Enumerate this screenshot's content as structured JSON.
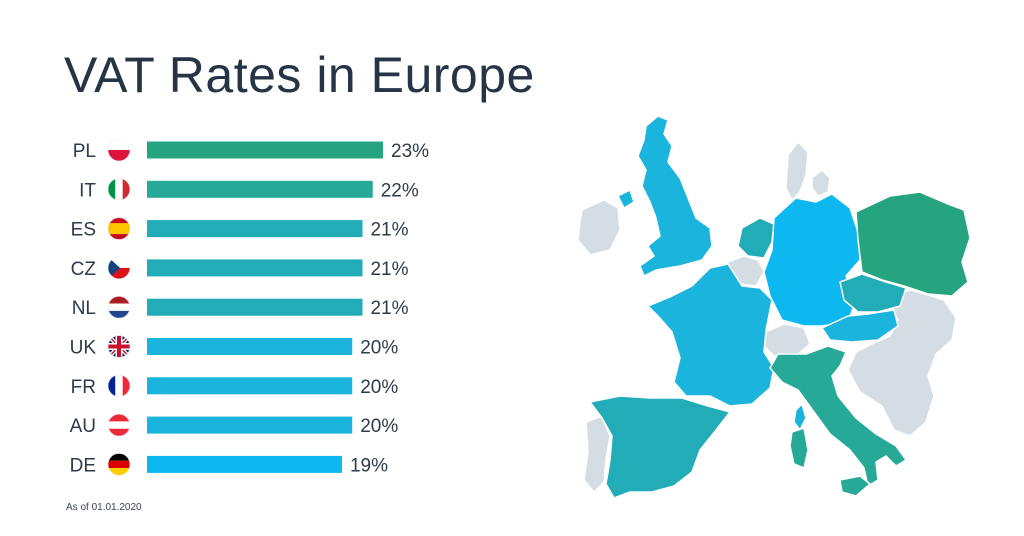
{
  "title": "VAT Rates in Europe",
  "note": "As of 01.01.2020",
  "chart_data": {
    "type": "bar",
    "orientation": "horizontal",
    "title": "VAT Rates in Europe",
    "categories": [
      "PL",
      "IT",
      "ES",
      "CZ",
      "NL",
      "UK",
      "FR",
      "AU",
      "DE"
    ],
    "values": [
      23,
      22,
      21,
      21,
      21,
      20,
      20,
      20,
      19
    ],
    "value_labels": [
      "23%",
      "22%",
      "21%",
      "21%",
      "21%",
      "20%",
      "20%",
      "20%",
      "19%"
    ],
    "flags": [
      "flag-poland-icon",
      "flag-italy-icon",
      "flag-spain-icon",
      "flag-czechia-icon",
      "flag-netherlands-icon",
      "flag-uk-icon",
      "flag-france-icon",
      "flag-austria-icon",
      "flag-germany-icon"
    ],
    "colors": [
      "#26a37f",
      "#26a996",
      "#22acb7",
      "#22acb7",
      "#22acb7",
      "#1ab4dc",
      "#1ab4dc",
      "#1ab4dc",
      "#0db7ef"
    ],
    "legend": "none",
    "grid": false
  },
  "map": {
    "colors": {
      "rate_23": "#26a37f",
      "rate_22": "#26a996",
      "rate_21": "#22acb7",
      "rate_20": "#1ab4dc",
      "rate_19": "#0db7ef",
      "other": "#d3dde3"
    }
  }
}
